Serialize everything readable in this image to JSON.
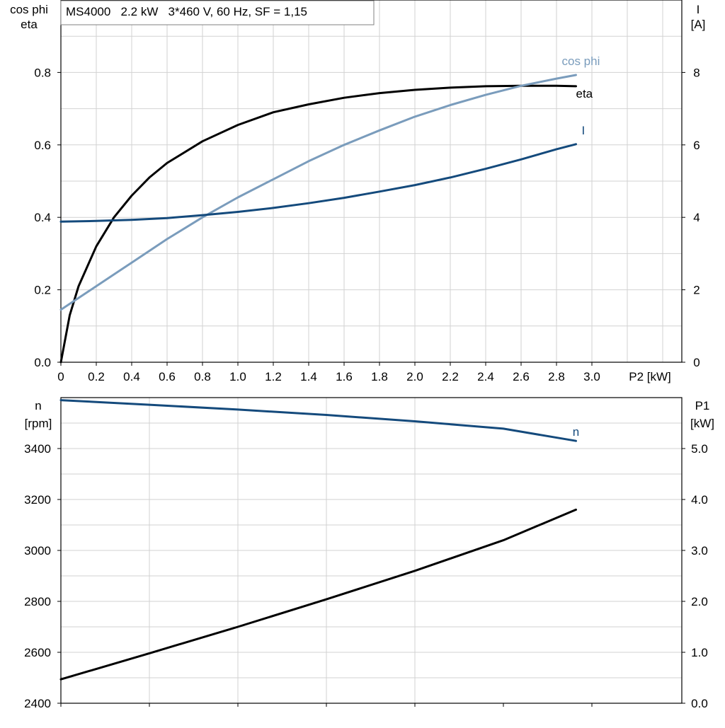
{
  "chart_data": [
    {
      "type": "line",
      "title": "MS4000   2.2 kW   3*460 V, 60 Hz, SF = 1,15",
      "xlabel": "P2 [kW]",
      "ylabel_left_line1": "cos phi",
      "ylabel_left_line2": "eta",
      "ylabel_right_line1": "I",
      "ylabel_right_line2": "[A]",
      "xlim": [
        0,
        3.4
      ],
      "ylim_left": [
        0,
        1.0
      ],
      "ylim_right": [
        0,
        10
      ],
      "x_ticks": [
        "0",
        "0.2",
        "0.4",
        "0.6",
        "0.8",
        "1.0",
        "1.2",
        "1.4",
        "1.6",
        "1.8",
        "2.0",
        "2.2",
        "2.4",
        "2.6",
        "2.8",
        "3.0"
      ],
      "y_left_ticks": [
        "0.0",
        "0.2",
        "0.4",
        "0.6",
        "0.8"
      ],
      "y_right_ticks": [
        "0",
        "2",
        "4",
        "6",
        "8"
      ],
      "grid": true,
      "series": [
        {
          "name": "eta",
          "axis": "left",
          "color": "#000000",
          "x": [
            0,
            0.05,
            0.1,
            0.2,
            0.3,
            0.4,
            0.5,
            0.6,
            0.8,
            1.0,
            1.2,
            1.4,
            1.6,
            1.8,
            2.0,
            2.2,
            2.4,
            2.6,
            2.8,
            2.91
          ],
          "y": [
            0,
            0.13,
            0.21,
            0.32,
            0.4,
            0.46,
            0.51,
            0.55,
            0.61,
            0.655,
            0.69,
            0.712,
            0.73,
            0.743,
            0.752,
            0.758,
            0.762,
            0.763,
            0.763,
            0.762
          ]
        },
        {
          "name": "cos phi",
          "axis": "left",
          "color": "#7a9cbc",
          "x": [
            0,
            0.2,
            0.4,
            0.6,
            0.8,
            1.0,
            1.2,
            1.4,
            1.6,
            1.8,
            2.0,
            2.2,
            2.4,
            2.6,
            2.8,
            2.91
          ],
          "y": [
            0.145,
            0.21,
            0.275,
            0.34,
            0.4,
            0.455,
            0.505,
            0.555,
            0.6,
            0.64,
            0.678,
            0.71,
            0.738,
            0.763,
            0.783,
            0.793
          ]
        },
        {
          "name": "I",
          "axis": "right",
          "color": "#144a7c",
          "x": [
            0,
            0.2,
            0.4,
            0.6,
            0.8,
            1.0,
            1.2,
            1.4,
            1.6,
            1.8,
            2.0,
            2.2,
            2.4,
            2.6,
            2.8,
            2.91
          ],
          "y": [
            3.88,
            3.9,
            3.93,
            3.98,
            4.06,
            4.15,
            4.26,
            4.39,
            4.54,
            4.71,
            4.89,
            5.1,
            5.34,
            5.6,
            5.88,
            6.02
          ]
        }
      ]
    },
    {
      "type": "line",
      "ylabel_left_line1": "n",
      "ylabel_left_line2": "[rpm]",
      "ylabel_right_line1": "P1",
      "ylabel_right_line2": "[kW]",
      "xlim": [
        0,
        3.5
      ],
      "ylim_left": [
        2400,
        3600
      ],
      "ylim_right": [
        0,
        6.0
      ],
      "y_left_ticks": [
        "2400",
        "2600",
        "2800",
        "3000",
        "3200",
        "3400"
      ],
      "y_right_ticks": [
        "0.0",
        "1.0",
        "2.0",
        "3.0",
        "4.0",
        "5.0"
      ],
      "grid": true,
      "series": [
        {
          "name": "n",
          "axis": "left",
          "color": "#144a7c",
          "x": [
            0,
            0.5,
            1.0,
            1.5,
            2.0,
            2.5,
            2.91
          ],
          "y": [
            3590,
            3572,
            3553,
            3532,
            3507,
            3478,
            3430
          ]
        },
        {
          "name": "",
          "axis": "right",
          "color": "#000000",
          "x": [
            0,
            0.5,
            1.0,
            1.5,
            2.0,
            2.5,
            2.91
          ],
          "y": [
            0.47,
            0.98,
            1.5,
            2.04,
            2.6,
            3.2,
            3.8
          ]
        }
      ]
    }
  ]
}
